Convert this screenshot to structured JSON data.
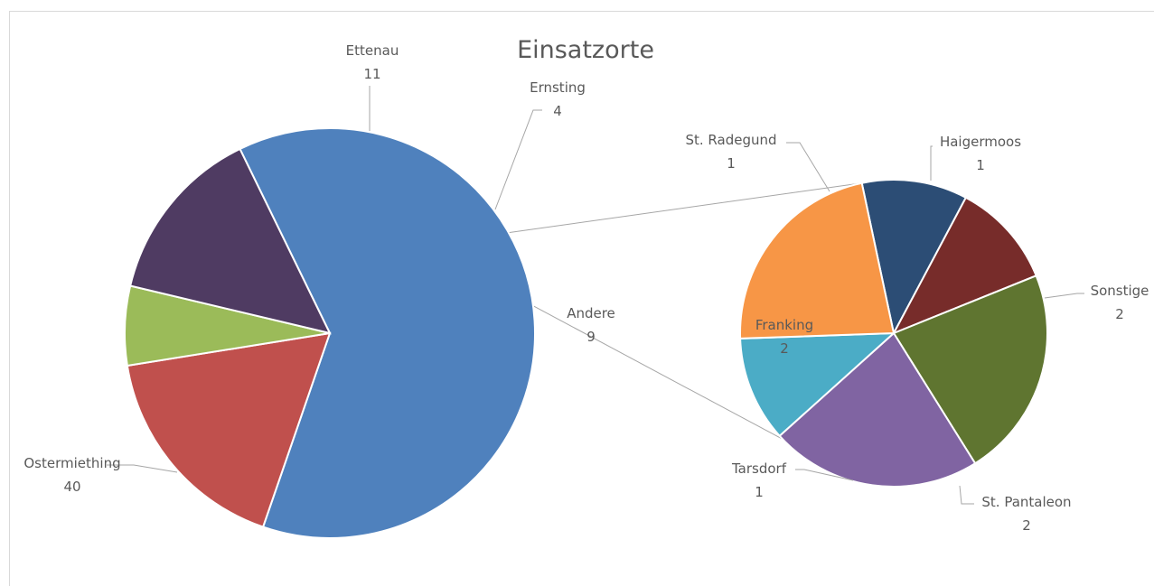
{
  "chart_data": {
    "type": "pie",
    "subtype": "pie-of-pie",
    "title": "Einsatzorte",
    "main": {
      "slices": [
        {
          "label": "Ostermiething",
          "value": 40,
          "color": "#4f81bd"
        },
        {
          "label": "Ettenau",
          "value": 11,
          "color": "#c0504d"
        },
        {
          "label": "Ernsting",
          "value": 4,
          "color": "#9bbb59"
        },
        {
          "label": "Andere",
          "value": 9,
          "color": "#4f3b62"
        }
      ]
    },
    "secondary": {
      "slices": [
        {
          "label": "St. Radegund",
          "value": 1,
          "color": "#2c4d75"
        },
        {
          "label": "Haigermoos",
          "value": 1,
          "color": "#772c2a"
        },
        {
          "label": "Sonstige",
          "value": 2,
          "color": "#5f7530"
        },
        {
          "label": "St. Pantaleon",
          "value": 2,
          "color": "#8064a2"
        },
        {
          "label": "Tarsdorf",
          "value": 1,
          "color": "#4bacc6"
        },
        {
          "label": "Franking",
          "value": 2,
          "color": "#f79646"
        }
      ]
    }
  }
}
